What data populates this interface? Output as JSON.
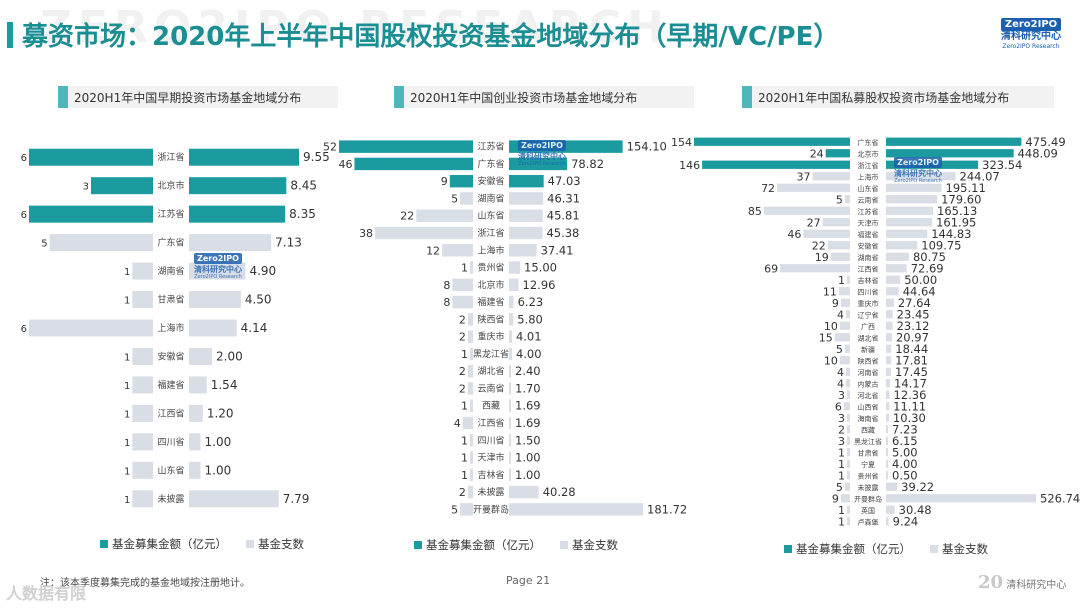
{
  "title": "募资市场：2020年上半年中国股权投资基金地域分布（早期/VC/PE）",
  "background_text": "ZERO2IPO RESEARCH",
  "logo": {
    "mark": "Zero2IPO",
    "cn": "清科研究中心",
    "en": "Zero2IPO Research"
  },
  "footnote": "注：该本季度募集完成的基金地域按注册地计。",
  "page": "Page 21",
  "bottom_watermark": "人数据有限",
  "footer_logo": {
    "num": "20",
    "text": "清科研究中心"
  },
  "colors": {
    "amount": "#1b9aa0",
    "count": "#d9dde6",
    "title_accent": "#4fb6be",
    "text": "#333333"
  },
  "chart_data": [
    {
      "type": "bar",
      "title": "2020H1年中国早期投资市场基金地域分布",
      "categories": [
        "浙江省",
        "北京市",
        "江苏省",
        "广东省",
        "湖南省",
        "甘肃省",
        "上海市",
        "安徽省",
        "福建省",
        "江西省",
        "四川省",
        "山东省",
        "未披露"
      ],
      "series": [
        {
          "name": "基金支数",
          "values": [
            6,
            3,
            6,
            5,
            1,
            1,
            6,
            1,
            1,
            1,
            1,
            1,
            1
          ]
        },
        {
          "name": "基金募集金额（亿元）",
          "values": [
            9.55,
            8.45,
            8.35,
            7.13,
            4.9,
            4.5,
            4.14,
            2.0,
            1.54,
            1.2,
            1.0,
            1.0,
            7.79
          ]
        }
      ],
      "count_labels": [
        "6",
        "3",
        "6",
        "5",
        "1",
        "1",
        "6",
        "1",
        "1",
        "1",
        "1",
        "1",
        "1"
      ],
      "amount_labels": [
        "9.55",
        "8.45",
        "8.35",
        "7.13",
        "4.90",
        "4.50",
        "4.14",
        "2.00",
        "1.54",
        "1.20",
        "1.00",
        "1.00",
        "7.79"
      ],
      "highlighted": 3,
      "legend": [
        "基金募集金额（亿元）",
        "基金支数"
      ]
    },
    {
      "type": "bar",
      "title": "2020H1年中国创业投资市场基金地域分布",
      "categories": [
        "江苏省",
        "广东省",
        "安徽省",
        "湖南省",
        "山东省",
        "浙江省",
        "上海市",
        "贵州省",
        "北京市",
        "福建省",
        "陕西省",
        "重庆市",
        "黑龙江省",
        "湖北省",
        "云南省",
        "西藏",
        "江西省",
        "四川省",
        "天津市",
        "吉林省",
        "未披露",
        "开曼群岛"
      ],
      "series": [
        {
          "name": "基金支数",
          "values": [
            52,
            46,
            9,
            5,
            22,
            38,
            12,
            1,
            8,
            8,
            2,
            2,
            1,
            2,
            2,
            1,
            4,
            1,
            1,
            1,
            2,
            5
          ]
        },
        {
          "name": "基金募集金额（亿元）",
          "values": [
            154.1,
            78.82,
            47.03,
            46.31,
            45.81,
            45.38,
            37.41,
            15.0,
            12.96,
            6.23,
            5.8,
            4.01,
            4.0,
            2.4,
            1.7,
            1.69,
            1.69,
            1.5,
            1.0,
            1.0,
            40.28,
            181.72
          ]
        }
      ],
      "count_labels": [
        "52",
        "46",
        "9",
        "5",
        "22",
        "38",
        "12",
        "1",
        "8",
        "8",
        "2",
        "2",
        "1",
        "2",
        "2",
        "1",
        "4",
        "1",
        "1",
        "1",
        "2",
        "5"
      ],
      "amount_labels": [
        "154.10",
        "78.82",
        "47.03",
        "46.31",
        "45.81",
        "45.38",
        "37.41",
        "15.00",
        "12.96",
        "6.23",
        "5.80",
        "4.01",
        "4.00",
        "2.40",
        "1.70",
        "1.69",
        "1.69",
        "1.50",
        "1.00",
        "1.00",
        "40.28",
        "181.72"
      ],
      "highlighted": 3,
      "legend": [
        "基金募集金额（亿元）",
        "基金支数"
      ]
    },
    {
      "type": "bar",
      "title": "2020H1年中国私募股权投资市场基金地域分布",
      "categories": [
        "广东省",
        "北京市",
        "浙江省",
        "上海市",
        "山东省",
        "云南省",
        "江苏省",
        "天津市",
        "福建省",
        "安徽省",
        "湖南省",
        "江西省",
        "吉林省",
        "四川省",
        "重庆市",
        "辽宁省",
        "广西",
        "湖北省",
        "新疆",
        "陕西省",
        "河南省",
        "内蒙古",
        "河北省",
        "山西省",
        "海南省",
        "西藏",
        "黑龙江省",
        "甘肃省",
        "宁夏",
        "贵州省",
        "未披露",
        "开曼群岛",
        "英国",
        "卢森堡"
      ],
      "series": [
        {
          "name": "基金支数",
          "values": [
            154,
            24,
            146,
            37,
            72,
            5,
            85,
            27,
            46,
            22,
            19,
            69,
            1,
            11,
            9,
            4,
            10,
            15,
            5,
            10,
            4,
            4,
            3,
            6,
            3,
            2,
            3,
            1,
            1,
            1,
            5,
            9,
            1,
            1
          ]
        },
        {
          "name": "基金募集金额（亿元）",
          "values": [
            475.49,
            448.09,
            323.54,
            244.07,
            195.11,
            179.6,
            165.13,
            161.95,
            144.83,
            109.75,
            80.75,
            72.69,
            50.0,
            44.64,
            27.64,
            23.45,
            23.12,
            20.97,
            18.44,
            17.81,
            17.45,
            14.17,
            12.36,
            11.11,
            10.3,
            7.23,
            6.15,
            5.0,
            4.0,
            0.5,
            39.22,
            526.74,
            30.48,
            9.24
          ]
        }
      ],
      "count_labels": [
        "154",
        "24",
        "146",
        "37",
        "72",
        "5",
        "85",
        "27",
        "46",
        "22",
        "19",
        "69",
        "1",
        "11",
        "9",
        "4",
        "10",
        "15",
        "5",
        "10",
        "4",
        "4",
        "3",
        "6",
        "3",
        "2",
        "3",
        "1",
        "1",
        "1",
        "5",
        "9",
        "1",
        "1"
      ],
      "amount_labels": [
        "475.49",
        "448.09",
        "323.54",
        "244.07",
        "195.11",
        "179.60",
        "165.13",
        "161.95",
        "144.83",
        "109.75",
        "80.75",
        "72.69",
        "50.00",
        "44.64",
        "27.64",
        "23.45",
        "23.12",
        "20.97",
        "18.44",
        "17.81",
        "17.45",
        "14.17",
        "12.36",
        "11.11",
        "10.30",
        "7.23",
        "6.15",
        "5.00",
        "4.00",
        "0.50",
        "39.22",
        "526.74",
        "30.48",
        "9.24"
      ],
      "highlighted": 3,
      "legend": [
        "基金募集金额（亿元）",
        "基金支数"
      ]
    }
  ]
}
